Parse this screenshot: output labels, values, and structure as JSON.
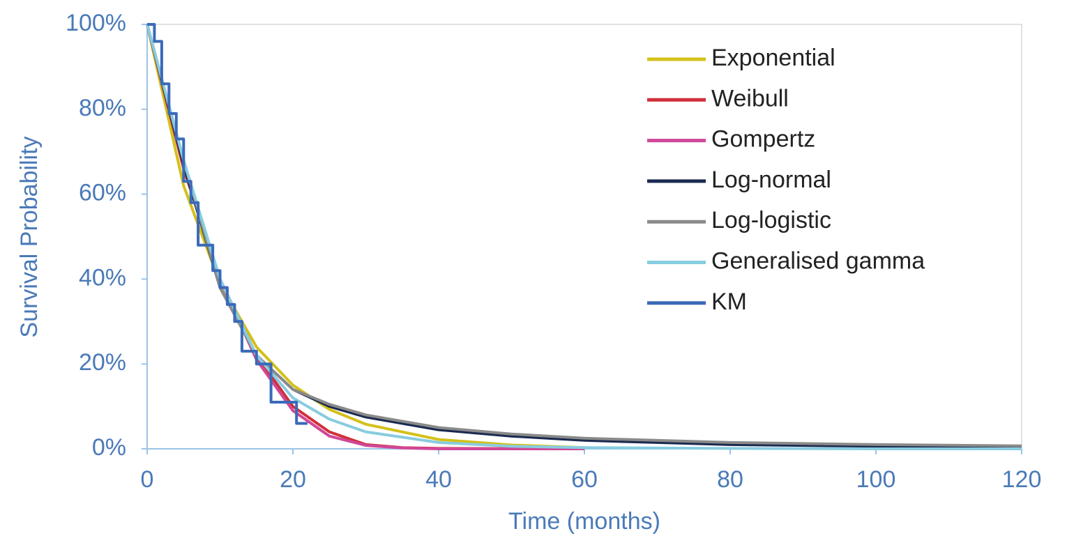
{
  "chart_data": {
    "type": "line",
    "x_label": "Time (months)",
    "y_label": "Survival Probability",
    "xlim": [
      0,
      120
    ],
    "xticks": [
      0,
      20,
      40,
      60,
      80,
      100,
      120
    ],
    "ylim": [
      0,
      100
    ],
    "yticks": [
      {
        "value": 0,
        "label": "0%"
      },
      {
        "value": 20,
        "label": "20%"
      },
      {
        "value": 40,
        "label": "40%"
      },
      {
        "value": 60,
        "label": "60%"
      },
      {
        "value": 80,
        "label": "80%"
      },
      {
        "value": 100,
        "label": "100%"
      }
    ],
    "grid": false,
    "legend": "upper right",
    "series": [
      {
        "name": "Exponential",
        "color": "#d4c01a",
        "x": [
          0,
          5,
          10,
          15,
          20,
          25,
          30,
          40,
          50,
          60
        ],
        "values": [
          100,
          62,
          39,
          24,
          15,
          9.3,
          5.8,
          2.2,
          0.9,
          0.3
        ]
      },
      {
        "name": "Weibull",
        "color": "#d0303a",
        "x": [
          0,
          5,
          10,
          15,
          20,
          25,
          30,
          35,
          40,
          60
        ],
        "values": [
          100,
          66,
          40,
          22,
          10,
          4,
          1,
          0.3,
          0.1,
          0
        ]
      },
      {
        "name": "Gompertz",
        "color": "#d04898",
        "x": [
          0,
          5,
          10,
          15,
          20,
          25,
          30,
          35,
          40,
          60
        ],
        "values": [
          100,
          67,
          40,
          21,
          9,
          3,
          0.8,
          0.2,
          0,
          0
        ]
      },
      {
        "name": "Log-normal",
        "color": "#1a2a50",
        "x": [
          0,
          5,
          10,
          15,
          20,
          25,
          30,
          40,
          50,
          60,
          70,
          80,
          100,
          120
        ],
        "values": [
          100,
          67,
          38,
          22,
          14,
          10,
          7.5,
          4.5,
          3,
          2,
          1.5,
          1,
          0.6,
          0.4
        ]
      },
      {
        "name": "Log-logistic",
        "color": "#8a8a8a",
        "x": [
          0,
          5,
          10,
          15,
          20,
          25,
          30,
          40,
          50,
          60,
          80,
          100,
          120
        ],
        "values": [
          100,
          68,
          38,
          22,
          14,
          10.5,
          8,
          5,
          3.5,
          2.5,
          1.5,
          1,
          0.7
        ]
      },
      {
        "name": "Generalised gamma",
        "color": "#88cce0",
        "x": [
          0,
          5,
          10,
          15,
          20,
          25,
          30,
          40,
          50,
          60,
          80,
          100,
          120
        ],
        "values": [
          100,
          68,
          40,
          22,
          12,
          7,
          4,
          1.5,
          0.6,
          0.3,
          0.1,
          0,
          0
        ]
      },
      {
        "name": "KM",
        "color": "#3a6ab8",
        "x": [
          0,
          1,
          1,
          2,
          2,
          3,
          3,
          4,
          4,
          5,
          5,
          6,
          6,
          7,
          7,
          9,
          9,
          10,
          10,
          11,
          11,
          12,
          12,
          13,
          13,
          15,
          15,
          17,
          17,
          20.5,
          20.5,
          22
        ],
        "values": [
          100,
          100,
          96,
          96,
          86,
          86,
          79,
          79,
          73,
          73,
          63,
          63,
          58,
          58,
          48,
          48,
          42,
          42,
          38,
          38,
          34,
          34,
          30,
          30,
          23,
          23,
          20,
          20,
          11,
          11,
          6,
          6
        ]
      }
    ]
  }
}
